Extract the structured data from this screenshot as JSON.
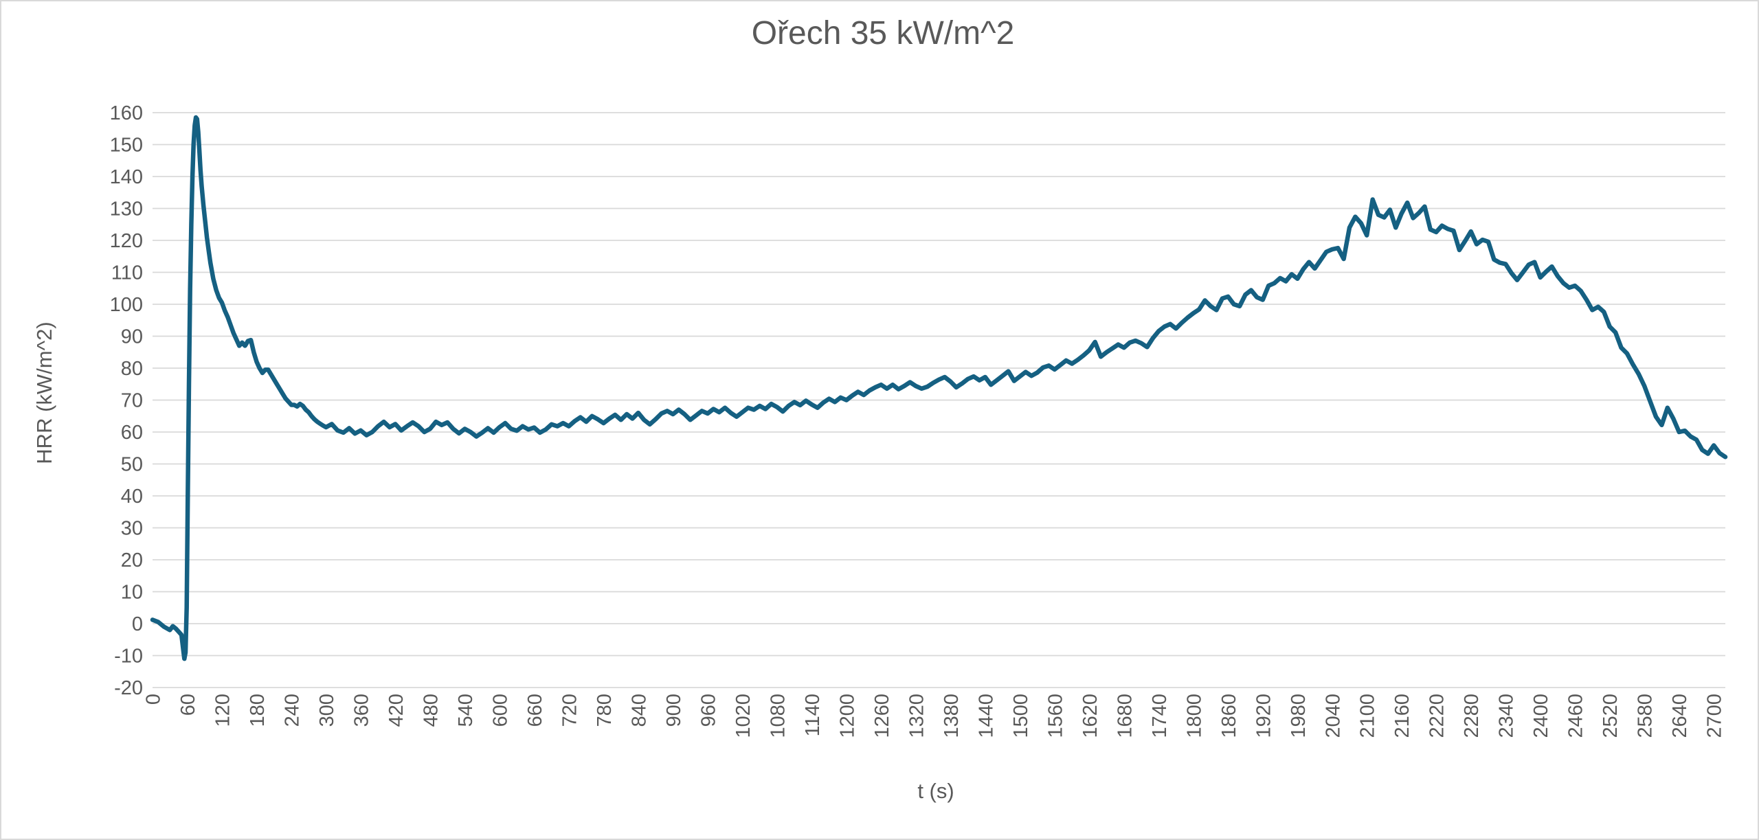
{
  "chart_data": {
    "type": "line",
    "title": "Ořech 35 kW/m^2",
    "xlabel": "t (s)",
    "ylabel": "HRR (kW/m^2)",
    "xlim": [
      0,
      2720
    ],
    "ylim": [
      -20,
      160
    ],
    "grid": "horizontal",
    "legend": "none",
    "line_color": "#156082",
    "grid_color": "#d9d9d9",
    "text_color": "#595959",
    "x_ticks": [
      0,
      60,
      120,
      180,
      240,
      300,
      360,
      420,
      480,
      540,
      600,
      660,
      720,
      780,
      840,
      900,
      960,
      1020,
      1080,
      1140,
      1200,
      1260,
      1320,
      1380,
      1440,
      1500,
      1560,
      1620,
      1680,
      1740,
      1800,
      1860,
      1920,
      1980,
      2040,
      2100,
      2160,
      2220,
      2280,
      2340,
      2400,
      2460,
      2520,
      2580,
      2640,
      2700
    ],
    "y_ticks": [
      -20,
      -10,
      0,
      10,
      20,
      30,
      40,
      50,
      60,
      70,
      80,
      90,
      100,
      110,
      120,
      130,
      140,
      150,
      160
    ],
    "series": [
      {
        "x": [
          0,
          10,
          20,
          30,
          35,
          40,
          45,
          50,
          53,
          55,
          57,
          59,
          61,
          63,
          65,
          67,
          69,
          71,
          73,
          75,
          77,
          79,
          81,
          83,
          85,
          88,
          91,
          94,
          97,
          100,
          105,
          110,
          115,
          120,
          125,
          130,
          135,
          140,
          145,
          150,
          155,
          160,
          165,
          170,
          175,
          180,
          185,
          190,
          195,
          200,
          205,
          210,
          215,
          220,
          225,
          230,
          235,
          240,
          245,
          250,
          255,
          260,
          265,
          270,
          275,
          280,
          285,
          290,
          295,
          300,
          310,
          320,
          330,
          340,
          350,
          360,
          370,
          380,
          390,
          400,
          410,
          420,
          430,
          440,
          450,
          460,
          470,
          480,
          490,
          500,
          510,
          520,
          530,
          540,
          550,
          560,
          570,
          580,
          590,
          600,
          610,
          620,
          630,
          640,
          650,
          660,
          670,
          680,
          690,
          700,
          710,
          720,
          730,
          740,
          750,
          760,
          770,
          780,
          790,
          800,
          810,
          820,
          830,
          840,
          850,
          860,
          870,
          880,
          890,
          900,
          910,
          920,
          930,
          940,
          950,
          960,
          970,
          980,
          990,
          1000,
          1010,
          1020,
          1030,
          1040,
          1050,
          1060,
          1070,
          1080,
          1090,
          1100,
          1110,
          1120,
          1130,
          1140,
          1150,
          1160,
          1170,
          1180,
          1190,
          1200,
          1210,
          1220,
          1230,
          1240,
          1250,
          1260,
          1270,
          1280,
          1290,
          1300,
          1310,
          1320,
          1330,
          1340,
          1350,
          1360,
          1370,
          1380,
          1390,
          1400,
          1410,
          1420,
          1430,
          1440,
          1450,
          1460,
          1470,
          1480,
          1490,
          1500,
          1510,
          1520,
          1530,
          1540,
          1550,
          1560,
          1570,
          1580,
          1590,
          1600,
          1610,
          1620,
          1630,
          1640,
          1650,
          1660,
          1670,
          1680,
          1690,
          1700,
          1710,
          1720,
          1730,
          1740,
          1750,
          1760,
          1770,
          1780,
          1790,
          1800,
          1810,
          1820,
          1830,
          1840,
          1850,
          1860,
          1870,
          1880,
          1890,
          1900,
          1910,
          1920,
          1930,
          1940,
          1950,
          1960,
          1970,
          1980,
          1990,
          2000,
          2010,
          2020,
          2030,
          2040,
          2050,
          2060,
          2070,
          2080,
          2090,
          2100,
          2110,
          2120,
          2130,
          2140,
          2150,
          2160,
          2170,
          2180,
          2190,
          2200,
          2210,
          2220,
          2230,
          2240,
          2250,
          2260,
          2270,
          2280,
          2290,
          2300,
          2310,
          2320,
          2330,
          2340,
          2350,
          2360,
          2370,
          2380,
          2390,
          2400,
          2410,
          2420,
          2430,
          2440,
          2450,
          2460,
          2470,
          2480,
          2490,
          2500,
          2510,
          2520,
          2530,
          2540,
          2550,
          2560,
          2570,
          2580,
          2590,
          2600,
          2610,
          2620,
          2630,
          2640,
          2650,
          2660,
          2670,
          2680,
          2690,
          2700,
          2710,
          2720
        ],
        "values": [
          1.2,
          0.5,
          -1,
          -2,
          -0.8,
          -1.5,
          -2.5,
          -3.5,
          -8,
          -11,
          -9,
          5,
          40,
          75,
          105,
          125,
          140,
          150,
          156,
          158.5,
          158,
          154,
          148,
          142,
          137,
          131,
          126,
          121,
          117,
          113,
          108,
          104.5,
          102,
          100.5,
          98,
          96,
          93.5,
          91,
          89,
          87,
          88,
          87,
          88.5,
          88.8,
          85,
          82,
          80,
          78.5,
          79.5,
          79.5,
          78,
          76.5,
          75,
          73.5,
          72,
          70.5,
          69.5,
          68.5,
          68.5,
          68,
          68.8,
          68.2,
          67,
          66.2,
          65,
          64,
          63.2,
          62.6,
          62,
          61.5,
          62.5,
          60.5,
          59.8,
          61.2,
          59.5,
          60.5,
          59,
          60,
          61.8,
          63.2,
          61.5,
          62.5,
          60.5,
          61.8,
          63,
          61.8,
          60,
          61,
          63.2,
          62.2,
          63,
          61,
          59.6,
          61,
          60,
          58.6,
          59.8,
          61.2,
          59.8,
          61.5,
          62.8,
          61,
          60.4,
          61.8,
          60.8,
          61.4,
          59.8,
          60.8,
          62.4,
          61.8,
          62.8,
          61.8,
          63.4,
          64.6,
          63.2,
          65,
          64,
          62.8,
          64.2,
          65.4,
          63.8,
          65.6,
          64.2,
          66,
          63.8,
          62.4,
          64,
          65.8,
          66.6,
          65.6,
          67,
          65.6,
          63.8,
          65.2,
          66.6,
          65.8,
          67.2,
          66.2,
          67.6,
          66,
          64.8,
          66.2,
          67.6,
          67,
          68.2,
          67.2,
          68.8,
          67.8,
          66.4,
          68.2,
          69.4,
          68.4,
          69.8,
          68.6,
          67.6,
          69.2,
          70.4,
          69.4,
          70.8,
          70,
          71.4,
          72.6,
          71.6,
          73,
          74,
          74.8,
          73.6,
          74.8,
          73.4,
          74.4,
          75.6,
          74.4,
          73.6,
          74.2,
          75.4,
          76.4,
          77.2,
          75.8,
          74,
          75.2,
          76.6,
          77.4,
          76.2,
          77.2,
          74.8,
          76.2,
          77.6,
          79,
          76,
          77.4,
          78.8,
          77.6,
          78.6,
          80.2,
          80.8,
          79.6,
          81,
          82.4,
          81.4,
          82.6,
          84,
          85.6,
          88.2,
          83.6,
          85,
          86.2,
          87.4,
          86.4,
          88,
          88.6,
          87.8,
          86.6,
          89.4,
          91.6,
          93,
          93.8,
          92.4,
          94.2,
          95.8,
          97.2,
          98.4,
          101.2,
          99.4,
          98.2,
          101.8,
          102.4,
          100,
          99.4,
          103,
          104.4,
          102.2,
          101.4,
          105.8,
          106.6,
          108.2,
          107.2,
          109.4,
          108,
          111,
          113.2,
          111.2,
          113.8,
          116.4,
          117.2,
          117.6,
          114.2,
          124,
          127.4,
          125.4,
          121.6,
          132.8,
          128,
          127.2,
          129.6,
          124,
          128.4,
          131.8,
          127,
          128.6,
          130.6,
          123.4,
          122.6,
          124.6,
          123.6,
          123,
          117,
          119.8,
          122.8,
          118.8,
          120.2,
          119.6,
          114,
          113,
          112.6,
          109.8,
          107.6,
          110,
          112.4,
          113.2,
          108.4,
          110.2,
          111.8,
          108.8,
          106.6,
          105.2,
          105.8,
          104.2,
          101.4,
          98.2,
          99.2,
          97.6,
          93,
          91.2,
          86.4,
          84.6,
          81.2,
          78.2,
          74.4,
          69.6,
          64.8,
          62.2,
          67.6,
          64.2,
          60,
          60.4,
          58.6,
          57.6,
          54.4,
          53.2,
          55.8,
          53.4,
          52.2
        ]
      }
    ]
  }
}
